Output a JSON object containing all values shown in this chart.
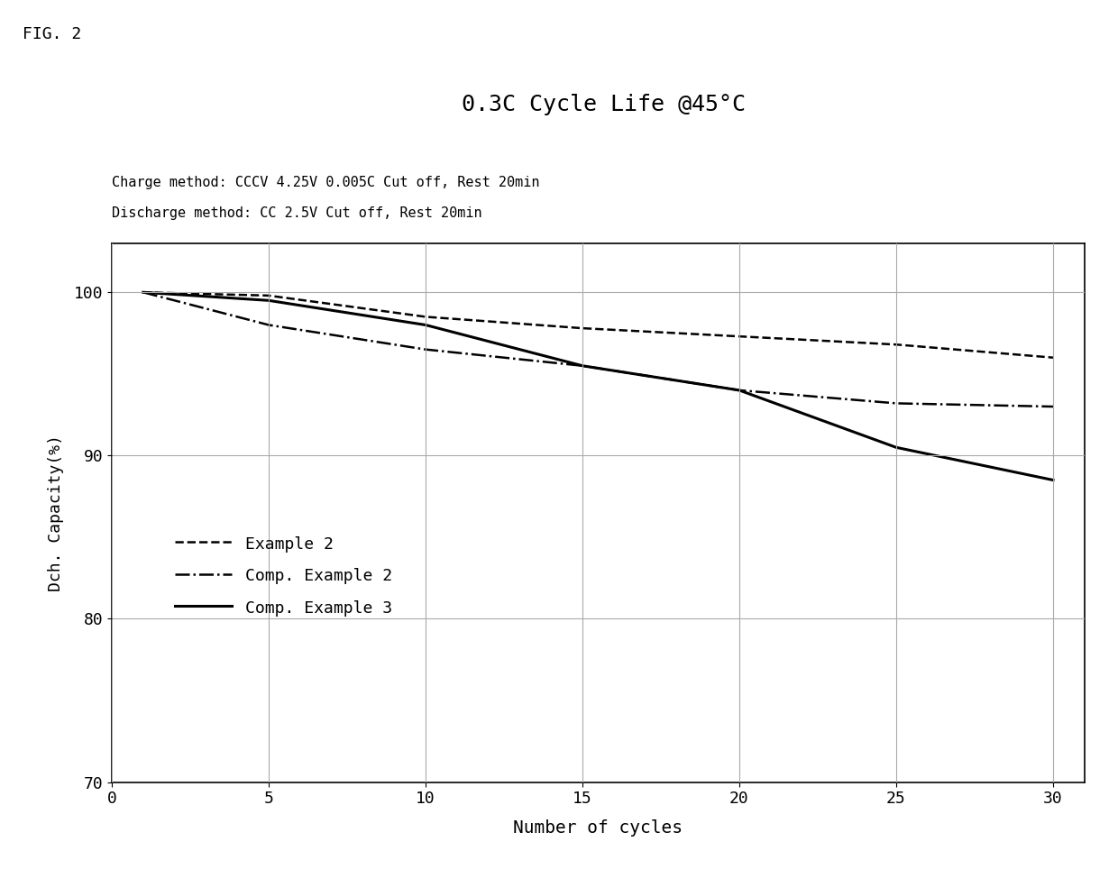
{
  "title": "0.3C Cycle Life @45°C",
  "subtitle_line1": "Charge method: CCCV 4.25V 0.005C Cut off, Rest 20min",
  "subtitle_line2": "Discharge method: CC 2.5V Cut off, Rest 20min",
  "fig_label": "FIG. 2",
  "xlabel": "Number of cycles",
  "ylabel": "Dch. Capacity(%)",
  "xlim": [
    0,
    31
  ],
  "ylim": [
    70,
    103
  ],
  "xticks": [
    0,
    5,
    10,
    15,
    20,
    25,
    30
  ],
  "yticks": [
    70,
    80,
    90,
    100
  ],
  "series": [
    {
      "label": "Example 2",
      "linestyle": "dashed",
      "color": "#000000",
      "linewidth": 1.8,
      "x": [
        1,
        5,
        10,
        15,
        20,
        25,
        30
      ],
      "y": [
        100.0,
        99.8,
        98.5,
        97.8,
        97.3,
        96.8,
        96.0
      ]
    },
    {
      "label": "Comp. Example 2",
      "linestyle": "dashdot",
      "color": "#000000",
      "linewidth": 1.8,
      "x": [
        1,
        5,
        10,
        15,
        20,
        25,
        30
      ],
      "y": [
        100.0,
        98.0,
        96.5,
        95.5,
        94.0,
        93.2,
        93.0
      ]
    },
    {
      "label": "Comp. Example 3",
      "linestyle": "solid",
      "color": "#000000",
      "linewidth": 2.2,
      "x": [
        1,
        5,
        10,
        15,
        20,
        25,
        30
      ],
      "y": [
        100.0,
        99.5,
        98.0,
        95.5,
        94.0,
        90.5,
        88.5
      ]
    }
  ],
  "grid_color": "#aaaaaa",
  "background_color": "#ffffff",
  "font_family": "monospace",
  "title_fontsize": 18,
  "subtitle_fontsize": 11,
  "label_fontsize": 14,
  "tick_fontsize": 13,
  "legend_fontsize": 13
}
